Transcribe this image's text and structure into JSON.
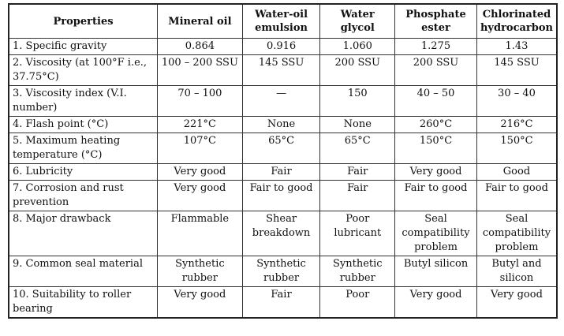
{
  "headers": [
    "Properties",
    "Mineral oil",
    "Water-oil emulsion",
    "Water glycol",
    "Phosphate ester",
    "Chlorinated hydrocarbon"
  ],
  "rows": [
    [
      "1. Specific gravity",
      "0.864",
      "0.916",
      "1.060",
      "1.275",
      "1.43"
    ],
    [
      "2. Viscosity (at 100°F i.e., 37.75°C)",
      "100 – 200 SSU",
      "145 SSU",
      "200 SSU",
      "200 SSU",
      "145 SSU"
    ],
    [
      "3. Viscosity index (V.I. number)",
      "70 – 100",
      "—",
      "150",
      "40 – 50",
      "30 – 40"
    ],
    [
      "4. Flash point (°C)",
      "221°C",
      "None",
      "None",
      "260°C",
      "216°C"
    ],
    [
      "5. Maximum heating temperature (°C)",
      "107°C",
      "65°C",
      "65°C",
      "150°C",
      "150°C"
    ],
    [
      "6. Lubricity",
      "Very good",
      "Fair",
      "Fair",
      "Very good",
      "Good"
    ],
    [
      "7. Corrosion and rust prevention",
      "Very good",
      "Fair to good",
      "Fair",
      "Fair to good",
      "Fair to good"
    ],
    [
      "8. Major drawback",
      "Flammable",
      "Shear breakdown",
      "Poor lubricant",
      "Seal compatibility problem",
      "Seal compatibility problem"
    ],
    [
      "9. Common seal material",
      "Synthetic rubber",
      "Synthetic rubber",
      "Synthetic rubber",
      "Butyl silicon",
      "Butyl and silicon"
    ],
    [
      "10. Suitability to roller bearing",
      "Very good",
      "Fair",
      "Poor",
      "Very good",
      "Very good"
    ]
  ]
}
